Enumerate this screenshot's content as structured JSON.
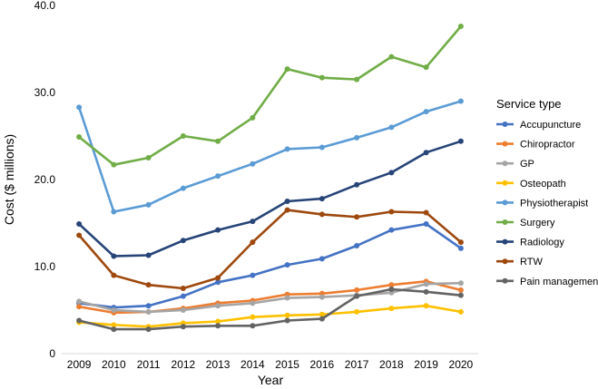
{
  "chart_data": {
    "type": "line",
    "xlabel": "Year",
    "ylabel": "Cost ($ millions)",
    "ylim": [
      0,
      40
    ],
    "yticks": [
      "0",
      "10.0",
      "20.0",
      "30.0",
      "40.0"
    ],
    "ytick_values": [
      0,
      10,
      20,
      30,
      40
    ],
    "grid": false,
    "legend_title": "Service type",
    "legend_position": "right",
    "x": [
      "2009",
      "2010",
      "2011",
      "2012",
      "2013",
      "2014",
      "2015",
      "2016",
      "2017",
      "2018",
      "2019",
      "2020"
    ],
    "series": [
      {
        "name": "Accupuncture",
        "color": "#4472C4",
        "values": [
          5.8,
          5.3,
          5.5,
          6.6,
          8.2,
          9.0,
          10.2,
          10.9,
          12.4,
          14.2,
          14.9,
          12.1
        ]
      },
      {
        "name": "Chiropractor",
        "color": "#ED7D31",
        "values": [
          5.4,
          4.7,
          4.8,
          5.2,
          5.8,
          6.1,
          6.8,
          6.9,
          7.3,
          7.9,
          8.3,
          7.3
        ]
      },
      {
        "name": "GP",
        "color": "#A5A5A5",
        "values": [
          6.0,
          5.0,
          4.8,
          5.0,
          5.5,
          5.8,
          6.4,
          6.5,
          6.7,
          7.0,
          8.0,
          8.1
        ]
      },
      {
        "name": "Osteopath",
        "color": "#FFC000",
        "values": [
          3.6,
          3.3,
          3.1,
          3.5,
          3.7,
          4.2,
          4.4,
          4.5,
          4.8,
          5.2,
          5.5,
          4.8
        ]
      },
      {
        "name": "Physiotherapist",
        "color": "#5B9BD5",
        "values": [
          28.3,
          16.3,
          17.1,
          19.0,
          20.4,
          21.8,
          23.5,
          23.7,
          24.8,
          26.0,
          27.8,
          29.0
        ]
      },
      {
        "name": "Surgery",
        "color": "#70AD47",
        "values": [
          24.9,
          21.7,
          22.5,
          25.0,
          24.4,
          27.1,
          32.7,
          31.7,
          31.5,
          34.1,
          32.9,
          37.6
        ]
      },
      {
        "name": "Radiology",
        "color": "#264478",
        "values": [
          14.9,
          11.2,
          11.3,
          13.0,
          14.2,
          15.2,
          17.5,
          17.8,
          19.4,
          20.8,
          23.1,
          24.4
        ]
      },
      {
        "name": "RTW",
        "color": "#9E480E",
        "values": [
          13.6,
          9.0,
          7.9,
          7.5,
          8.7,
          12.8,
          16.5,
          16.0,
          15.7,
          16.3,
          16.2,
          12.8
        ]
      },
      {
        "name": "Pain management",
        "color": "#636363",
        "values": [
          3.8,
          2.8,
          2.8,
          3.1,
          3.2,
          3.2,
          3.8,
          4.0,
          6.6,
          7.4,
          7.1,
          6.7
        ]
      }
    ]
  }
}
